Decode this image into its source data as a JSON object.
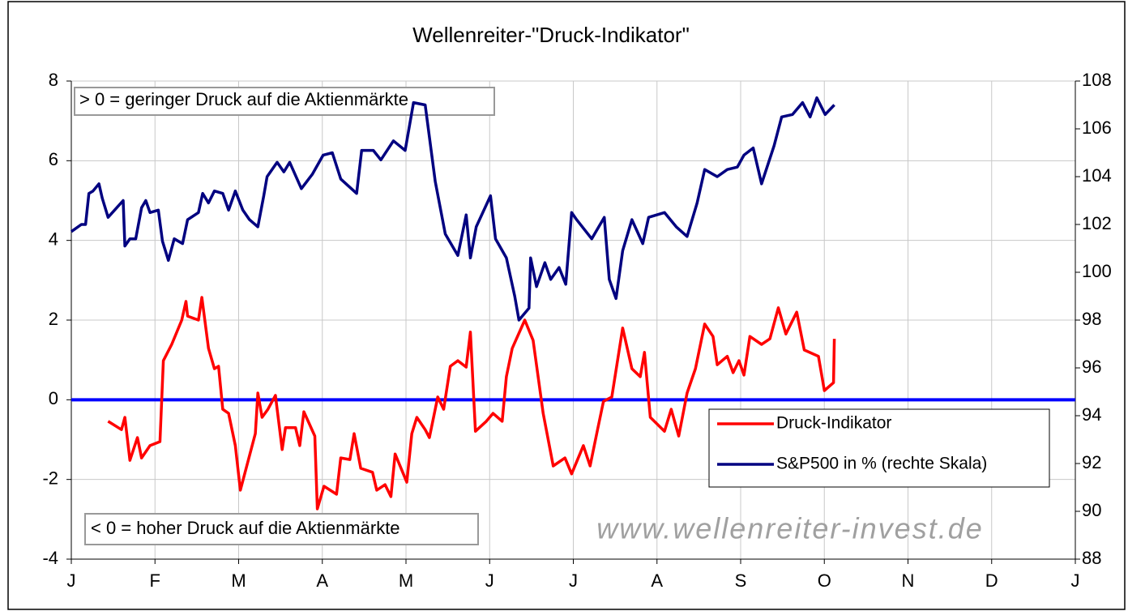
{
  "chart_data": {
    "type": "line",
    "title": "Wellenreiter-\"Druck-Indikator\"",
    "xlim": [
      0,
      12
    ],
    "xticks": [
      {
        "value": 0,
        "label": "J"
      },
      {
        "value": 1,
        "label": "F"
      },
      {
        "value": 2,
        "label": "M"
      },
      {
        "value": 3,
        "label": "A"
      },
      {
        "value": 4,
        "label": "M"
      },
      {
        "value": 5,
        "label": "J"
      },
      {
        "value": 6,
        "label": "J"
      },
      {
        "value": 7,
        "label": "A"
      },
      {
        "value": 8,
        "label": "S"
      },
      {
        "value": 9,
        "label": "O"
      },
      {
        "value": 10,
        "label": "N"
      },
      {
        "value": 11,
        "label": "D"
      },
      {
        "value": 12,
        "label": "J"
      }
    ],
    "ylim": [
      -4,
      8
    ],
    "yticks": [
      -4,
      -2,
      0,
      2,
      4,
      6,
      8
    ],
    "y2lim": [
      88,
      108
    ],
    "y2ticks": [
      88,
      90,
      92,
      94,
      96,
      98,
      100,
      102,
      104,
      106,
      108
    ],
    "grid": true,
    "reference_line": {
      "value": 0,
      "color": "#0000ff"
    },
    "annotations": [
      "> 0 = geringer Druck auf die Aktienmärkte",
      "< 0 = hoher Druck auf die Aktienmärkte",
      "www.wellenreiter-invest.de"
    ],
    "legend": "lower right",
    "series": [
      {
        "name": "Druck-Indikator",
        "color": "#ff0000",
        "axis": "y",
        "x": [
          0.44,
          0.6,
          0.64,
          0.7,
          0.79,
          0.84,
          0.94,
          1.06,
          1.1,
          1.2,
          1.32,
          1.37,
          1.39,
          1.52,
          1.56,
          1.64,
          1.71,
          1.76,
          1.81,
          1.88,
          1.96,
          2.02,
          2.2,
          2.23,
          2.28,
          2.35,
          2.44,
          2.52,
          2.56,
          2.68,
          2.73,
          2.78,
          2.91,
          2.94,
          3.02,
          3.17,
          3.22,
          3.33,
          3.38,
          3.46,
          3.6,
          3.65,
          3.75,
          3.82,
          3.87,
          4.01,
          4.07,
          4.13,
          4.23,
          4.28,
          4.38,
          4.45,
          4.53,
          4.62,
          4.72,
          4.77,
          4.83,
          4.96,
          5.04,
          5.15,
          5.2,
          5.27,
          5.42,
          5.52,
          5.64,
          5.76,
          5.9,
          5.98,
          6.12,
          6.2,
          6.29,
          6.36,
          6.46,
          6.59,
          6.7,
          6.8,
          6.85,
          6.92,
          7.09,
          7.17,
          7.26,
          7.36,
          7.46,
          7.57,
          7.67,
          7.72,
          7.84,
          7.91,
          7.98,
          8.04,
          8.11,
          8.25,
          8.35,
          8.45,
          8.54,
          8.67,
          8.76,
          8.93,
          9.0,
          9.11,
          9.12
        ],
        "values": [
          -0.54,
          -0.75,
          -0.44,
          -1.52,
          -0.95,
          -1.46,
          -1.15,
          -1.05,
          0.98,
          1.39,
          2.0,
          2.47,
          2.1,
          2.0,
          2.57,
          1.29,
          0.78,
          0.84,
          -0.24,
          -0.34,
          -1.15,
          -2.27,
          -0.85,
          0.17,
          -0.44,
          -0.24,
          0.11,
          -1.25,
          -0.7,
          -0.7,
          -1.15,
          -0.3,
          -0.91,
          -2.74,
          -2.17,
          -2.37,
          -1.46,
          -1.5,
          -0.85,
          -1.72,
          -1.82,
          -2.27,
          -2.13,
          -2.43,
          -1.36,
          -2.07,
          -0.85,
          -0.44,
          -0.75,
          -0.95,
          0.07,
          -0.24,
          0.84,
          0.98,
          0.82,
          1.7,
          -0.79,
          -0.54,
          -0.34,
          -0.54,
          0.58,
          1.29,
          2.0,
          1.49,
          -0.34,
          -1.66,
          -1.46,
          -1.86,
          -1.15,
          -1.66,
          -0.75,
          -0.04,
          0.07,
          1.8,
          0.78,
          0.58,
          1.19,
          -0.44,
          -0.79,
          -0.24,
          -0.91,
          0.17,
          0.78,
          1.9,
          1.59,
          0.88,
          1.09,
          0.68,
          0.98,
          0.62,
          1.59,
          1.39,
          1.53,
          2.31,
          1.65,
          2.2,
          1.25,
          1.09,
          0.23,
          0.43,
          1.53
        ]
      },
      {
        "name": "S&P500 in % (rechte Skala)",
        "color": "#000080",
        "axis": "y2",
        "x": [
          0.0,
          0.12,
          0.17,
          0.21,
          0.26,
          0.33,
          0.37,
          0.44,
          0.62,
          0.64,
          0.7,
          0.77,
          0.84,
          0.89,
          0.94,
          1.04,
          1.09,
          1.16,
          1.23,
          1.33,
          1.39,
          1.52,
          1.57,
          1.64,
          1.71,
          1.81,
          1.88,
          1.96,
          2.05,
          2.13,
          2.23,
          2.3,
          2.34,
          2.46,
          2.54,
          2.61,
          2.75,
          2.88,
          3.01,
          3.12,
          3.22,
          3.41,
          3.47,
          3.61,
          3.7,
          3.85,
          3.99,
          4.09,
          4.23,
          4.35,
          4.47,
          4.62,
          4.72,
          4.77,
          4.84,
          5.01,
          5.07,
          5.2,
          5.3,
          5.35,
          5.47,
          5.49,
          5.56,
          5.66,
          5.73,
          5.83,
          5.91,
          5.98,
          6.04,
          6.22,
          6.37,
          6.43,
          6.51,
          6.59,
          6.7,
          6.83,
          6.9,
          7.09,
          7.23,
          7.36,
          7.48,
          7.57,
          7.72,
          7.84,
          7.96,
          8.04,
          8.15,
          8.25,
          8.4,
          8.49,
          8.62,
          8.74,
          8.83,
          8.91,
          9.01,
          9.12
        ],
        "values": [
          101.7,
          102.0,
          102.0,
          103.3,
          103.4,
          103.7,
          103.1,
          102.3,
          103.0,
          101.1,
          101.4,
          101.4,
          102.7,
          103.0,
          102.5,
          102.6,
          101.3,
          100.5,
          101.4,
          101.2,
          102.2,
          102.5,
          103.3,
          102.9,
          103.4,
          103.3,
          102.6,
          103.4,
          102.6,
          102.2,
          101.9,
          103.2,
          104.0,
          104.6,
          104.2,
          104.6,
          103.5,
          104.1,
          104.9,
          105.0,
          103.9,
          103.3,
          105.1,
          105.1,
          104.7,
          105.5,
          105.1,
          107.1,
          107.0,
          103.8,
          101.6,
          100.7,
          102.4,
          100.6,
          101.9,
          103.2,
          101.4,
          100.6,
          99.0,
          98.0,
          98.5,
          100.6,
          99.4,
          100.4,
          99.7,
          100.2,
          99.5,
          102.5,
          102.2,
          101.4,
          102.3,
          99.7,
          98.9,
          100.9,
          102.2,
          101.2,
          102.3,
          102.5,
          101.9,
          101.5,
          102.9,
          104.3,
          104.0,
          104.3,
          104.4,
          104.9,
          105.2,
          103.7,
          105.3,
          106.5,
          106.6,
          107.1,
          106.5,
          107.3,
          106.6,
          107.0
        ]
      }
    ]
  }
}
